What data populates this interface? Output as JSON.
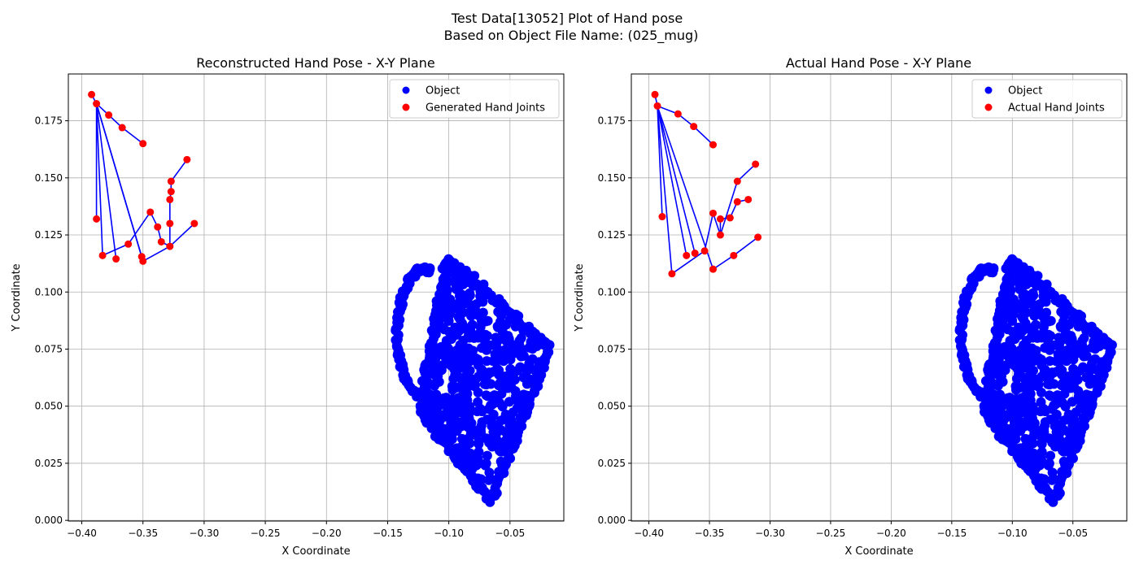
{
  "figure": {
    "title_line1": "Test Data[13052] Plot of Hand pose",
    "title_line2": "Based on Object File Name: (025_mug)"
  },
  "colors": {
    "object": "#0000ff",
    "joints": "#ff0000",
    "bones": "#0000ff",
    "grid": "#b0b0b0"
  },
  "chart_data": [
    {
      "type": "scatter",
      "title": "Reconstructed Hand Pose - X-Y Plane",
      "xlabel": "X Coordinate",
      "ylabel": "Y Coordinate",
      "xlim": [
        -0.411,
        -0.006
      ],
      "ylim": [
        -0.0003,
        0.1955
      ],
      "xticks": [
        -0.4,
        -0.35,
        -0.3,
        -0.25,
        -0.2,
        -0.15,
        -0.1,
        -0.05
      ],
      "xtick_labels": [
        "−0.40",
        "−0.35",
        "−0.30",
        "−0.25",
        "−0.20",
        "−0.15",
        "−0.10",
        "−0.05"
      ],
      "yticks": [
        0.0,
        0.025,
        0.05,
        0.075,
        0.1,
        0.125,
        0.15,
        0.175
      ],
      "ytick_labels": [
        "0.000",
        "0.025",
        "0.050",
        "0.075",
        "0.100",
        "0.125",
        "0.150",
        "0.175"
      ],
      "grid": true,
      "legend_position": "top-right",
      "series": [
        {
          "name": "Object",
          "color": "#0000ff"
        },
        {
          "name": "Generated Hand Joints",
          "color": "#ff0000"
        }
      ],
      "joints": [
        [
          -0.392,
          0.1865
        ],
        [
          -0.388,
          0.1825
        ],
        [
          -0.378,
          0.1775
        ],
        [
          -0.367,
          0.172
        ],
        [
          -0.35,
          0.165
        ],
        [
          -0.388,
          0.132
        ],
        [
          -0.383,
          0.116
        ],
        [
          -0.372,
          0.1145
        ],
        [
          -0.351,
          0.1155
        ],
        [
          -0.35,
          0.1135
        ],
        [
          -0.362,
          0.121
        ],
        [
          -0.344,
          0.135
        ],
        [
          -0.338,
          0.1285
        ],
        [
          -0.335,
          0.122
        ],
        [
          -0.328,
          0.12
        ],
        [
          -0.328,
          0.13
        ],
        [
          -0.328,
          0.1405
        ],
        [
          -0.327,
          0.144
        ],
        [
          -0.327,
          0.1485
        ],
        [
          -0.314,
          0.158
        ],
        [
          -0.308,
          0.13
        ]
      ],
      "bones": [
        [
          0,
          1
        ],
        [
          1,
          2
        ],
        [
          2,
          3
        ],
        [
          3,
          4
        ],
        [
          1,
          5
        ],
        [
          1,
          6
        ],
        [
          1,
          7
        ],
        [
          1,
          8
        ],
        [
          1,
          9
        ],
        [
          6,
          10
        ],
        [
          10,
          11
        ],
        [
          11,
          12
        ],
        [
          12,
          13
        ],
        [
          13,
          14
        ],
        [
          14,
          15
        ],
        [
          15,
          16
        ],
        [
          16,
          17
        ],
        [
          17,
          18
        ],
        [
          18,
          19
        ],
        [
          9,
          14
        ],
        [
          14,
          20
        ]
      ]
    },
    {
      "type": "scatter",
      "title": "Actual Hand Pose - X-Y Plane",
      "xlabel": "X Coordinate",
      "ylabel": "Y Coordinate",
      "xlim": [
        -0.4145,
        -0.0055
      ],
      "ylim": [
        -0.0003,
        0.1955
      ],
      "xticks": [
        -0.4,
        -0.35,
        -0.3,
        -0.25,
        -0.2,
        -0.15,
        -0.1,
        -0.05
      ],
      "xtick_labels": [
        "−0.40",
        "−0.35",
        "−0.30",
        "−0.25",
        "−0.20",
        "−0.15",
        "−0.10",
        "−0.05"
      ],
      "yticks": [
        0.0,
        0.025,
        0.05,
        0.075,
        0.1,
        0.125,
        0.15,
        0.175
      ],
      "ytick_labels": [
        "0.000",
        "0.025",
        "0.050",
        "0.075",
        "0.100",
        "0.125",
        "0.150",
        "0.175"
      ],
      "grid": true,
      "legend_position": "top-right",
      "series": [
        {
          "name": "Object",
          "color": "#0000ff"
        },
        {
          "name": "Actual Hand Joints",
          "color": "#ff0000"
        }
      ],
      "joints": [
        [
          -0.395,
          0.1865
        ],
        [
          -0.393,
          0.1815
        ],
        [
          -0.376,
          0.178
        ],
        [
          -0.363,
          0.1725
        ],
        [
          -0.347,
          0.1645
        ],
        [
          -0.389,
          0.133
        ],
        [
          -0.381,
          0.108
        ],
        [
          -0.369,
          0.116
        ],
        [
          -0.362,
          0.117
        ],
        [
          -0.354,
          0.118
        ],
        [
          -0.347,
          0.11
        ],
        [
          -0.33,
          0.116
        ],
        [
          -0.31,
          0.124
        ],
        [
          -0.347,
          0.1345
        ],
        [
          -0.341,
          0.125
        ],
        [
          -0.341,
          0.132
        ],
        [
          -0.333,
          0.1325
        ],
        [
          -0.327,
          0.1395
        ],
        [
          -0.318,
          0.1405
        ],
        [
          -0.327,
          0.1485
        ],
        [
          -0.312,
          0.156
        ]
      ],
      "bones": [
        [
          0,
          1
        ],
        [
          1,
          2
        ],
        [
          2,
          3
        ],
        [
          3,
          4
        ],
        [
          1,
          5
        ],
        [
          1,
          6
        ],
        [
          1,
          7
        ],
        [
          1,
          8
        ],
        [
          1,
          10
        ],
        [
          6,
          9
        ],
        [
          9,
          13
        ],
        [
          13,
          14
        ],
        [
          14,
          15
        ],
        [
          15,
          16
        ],
        [
          16,
          17
        ],
        [
          17,
          18
        ],
        [
          14,
          19
        ],
        [
          19,
          20
        ],
        [
          10,
          11
        ],
        [
          11,
          12
        ]
      ]
    }
  ]
}
